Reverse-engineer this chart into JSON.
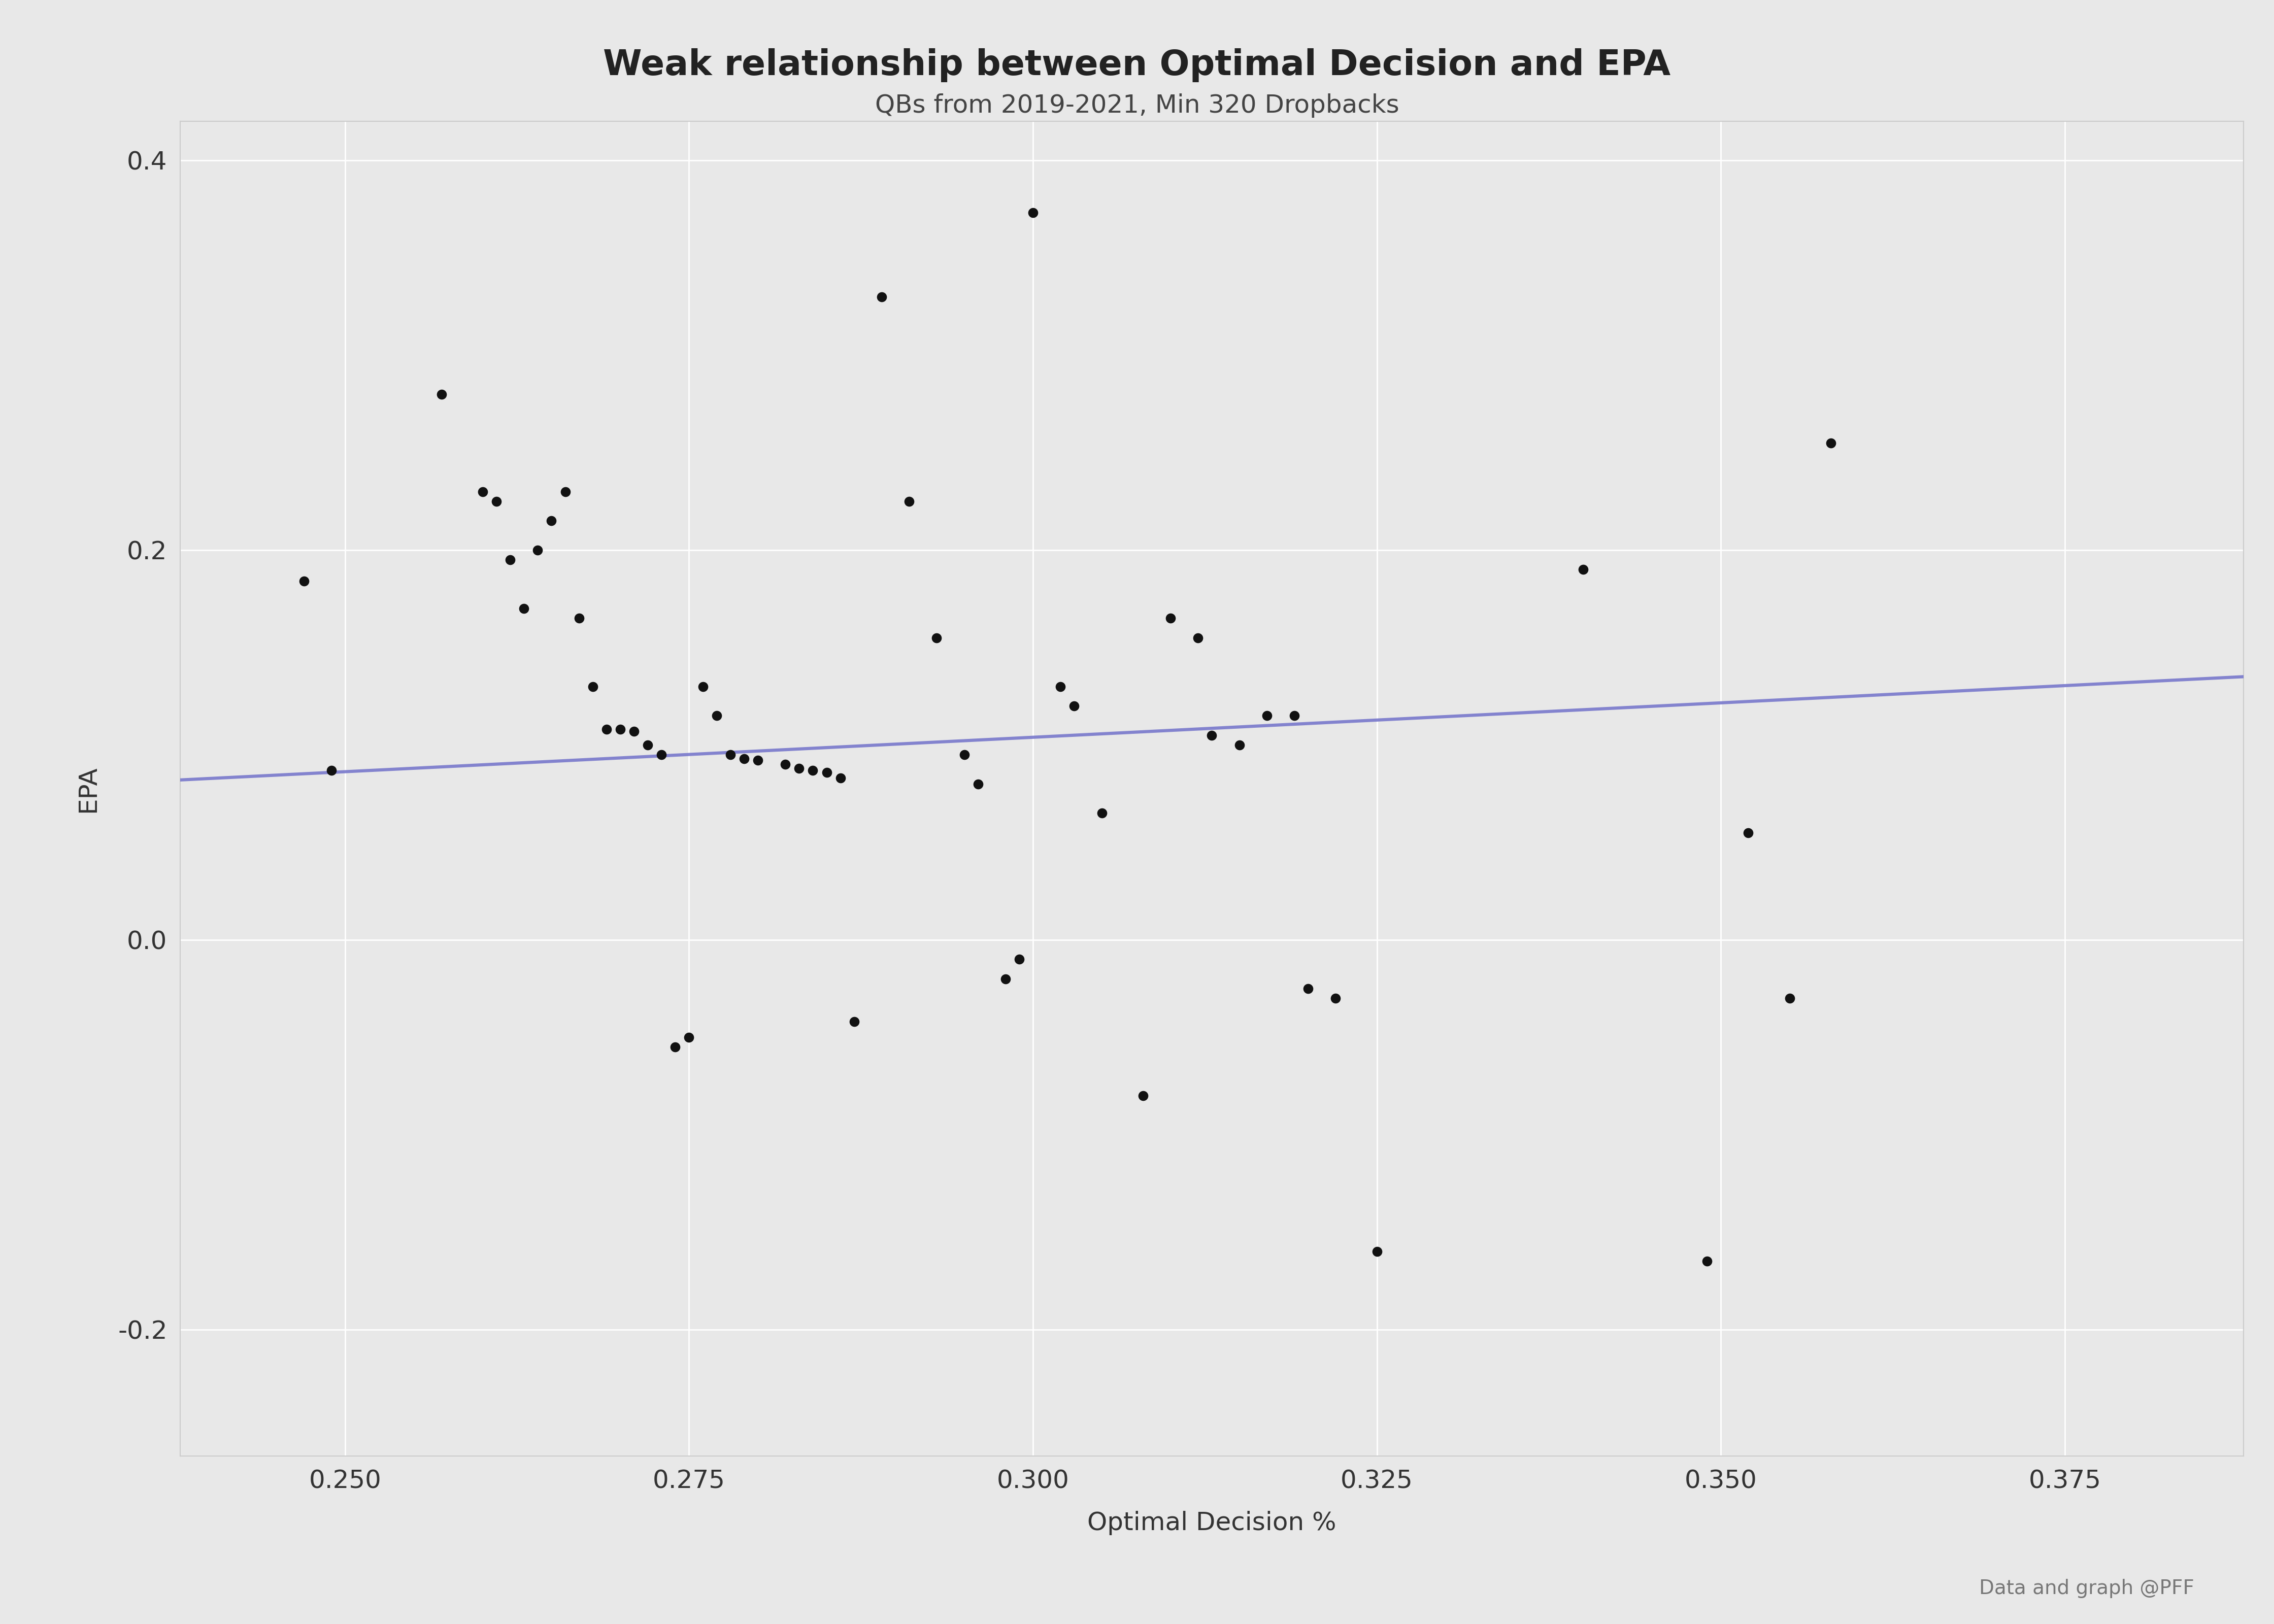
{
  "title": "Weak relationship between Optimal Decision and EPA",
  "subtitle": "QBs from 2019-2021, Min 320 Dropbacks",
  "xlabel": "Optimal Decision %",
  "ylabel": "EPA",
  "footer": "Data and graph @PFF",
  "background_color": "#e8e8e8",
  "plot_background_color": "#e8e8e8",
  "dot_color": "#111111",
  "line_color": "#7878cc",
  "xlim": [
    0.238,
    0.388
  ],
  "ylim": [
    -0.265,
    0.42
  ],
  "xticks": [
    0.25,
    0.275,
    0.3,
    0.325,
    0.35,
    0.375
  ],
  "yticks": [
    -0.2,
    0.0,
    0.2,
    0.4
  ],
  "x": [
    0.247,
    0.249,
    0.257,
    0.26,
    0.261,
    0.262,
    0.263,
    0.264,
    0.265,
    0.266,
    0.267,
    0.268,
    0.269,
    0.27,
    0.271,
    0.272,
    0.273,
    0.274,
    0.275,
    0.276,
    0.277,
    0.278,
    0.279,
    0.28,
    0.282,
    0.283,
    0.284,
    0.285,
    0.286,
    0.287,
    0.289,
    0.291,
    0.293,
    0.295,
    0.296,
    0.298,
    0.299,
    0.3,
    0.302,
    0.303,
    0.305,
    0.308,
    0.31,
    0.312,
    0.313,
    0.315,
    0.317,
    0.319,
    0.32,
    0.322,
    0.325,
    0.34,
    0.349,
    0.352,
    0.355,
    0.358
  ],
  "y": [
    0.184,
    0.087,
    0.28,
    0.23,
    0.225,
    0.195,
    0.17,
    0.2,
    0.215,
    0.23,
    0.165,
    0.13,
    0.108,
    0.108,
    0.107,
    0.1,
    0.095,
    -0.055,
    -0.05,
    0.13,
    0.115,
    0.095,
    0.093,
    0.092,
    0.09,
    0.088,
    0.087,
    0.086,
    0.083,
    -0.042,
    0.33,
    0.225,
    0.155,
    0.095,
    0.08,
    -0.02,
    -0.01,
    0.373,
    0.13,
    0.12,
    0.065,
    -0.08,
    0.165,
    0.155,
    0.105,
    0.1,
    0.115,
    0.115,
    -0.025,
    -0.03,
    -0.16,
    0.19,
    -0.165,
    0.055,
    -0.03,
    0.255
  ],
  "line_x": [
    0.238,
    0.388
  ],
  "line_y": [
    0.082,
    0.135
  ]
}
